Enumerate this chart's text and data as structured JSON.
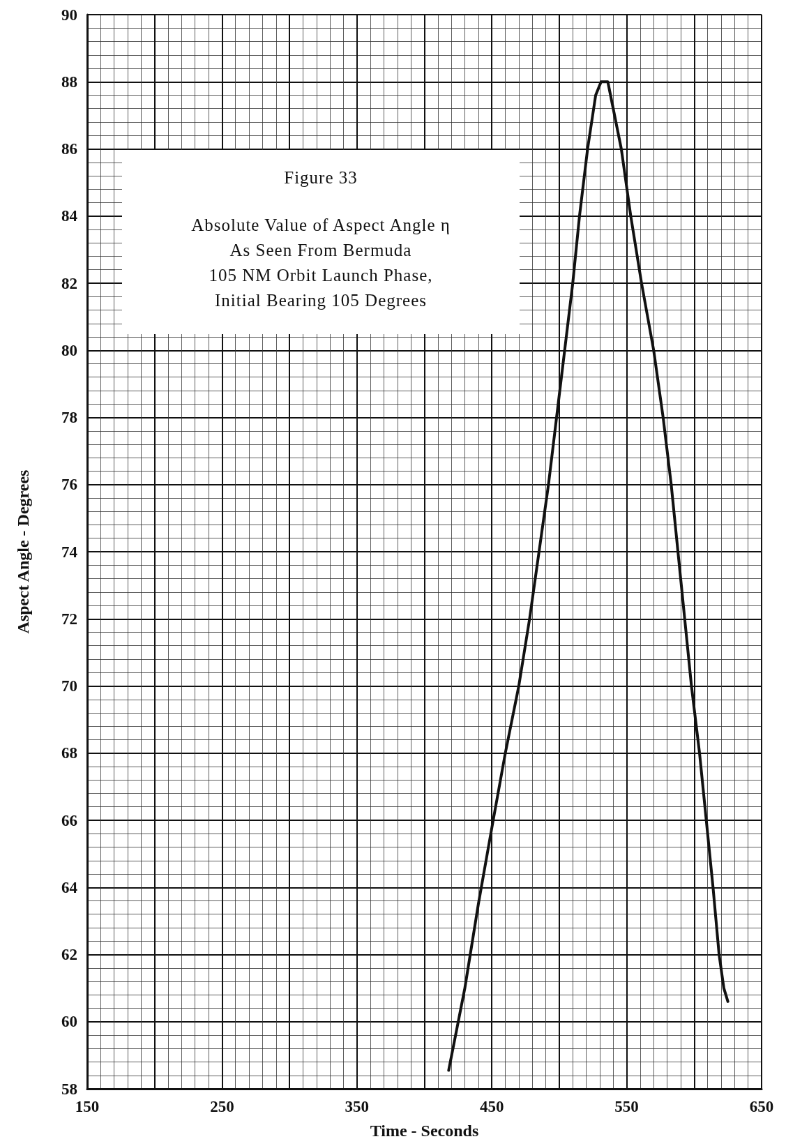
{
  "chart_data": {
    "type": "line",
    "title": "Figure 33",
    "subtitle": "Absolute Value of Aspect Angle η\nAs Seen From Bermuda\n105 NM Orbit Launch Phase,\nInitial Bearing 105 Degrees",
    "xlabel": "Time - Seconds",
    "ylabel": "Aspect Angle - Degrees",
    "x": [
      418,
      430,
      440,
      451,
      460,
      470,
      478,
      485,
      492,
      498,
      504,
      510,
      515,
      521,
      527,
      531,
      536,
      540,
      546,
      553,
      561,
      570,
      577,
      583,
      588,
      593,
      598,
      604,
      609,
      614,
      618.5,
      622,
      625
    ],
    "series": [
      {
        "color": "#111111",
        "values": [
          58.55,
          61,
          63.5,
          66,
          68,
          70,
          72,
          74,
          76,
          78,
          80,
          82,
          84,
          86,
          87.6,
          88,
          88,
          87.2,
          86,
          84,
          82,
          80,
          78,
          76,
          74,
          72,
          70,
          68,
          66,
          64,
          62,
          61,
          60.6
        ]
      }
    ],
    "xlim": [
      150,
      650
    ],
    "xticks": [
      150,
      {
        "value": 200,
        "label": null
      },
      250,
      {
        "value": 300,
        "label": null
      },
      350,
      {
        "value": 400,
        "label": null
      },
      450,
      {
        "value": 500,
        "label": null
      },
      550,
      {
        "value": 600,
        "label": null
      },
      650
    ],
    "ylim": [
      58,
      90
    ],
    "yticks": [
      58,
      60,
      62,
      64,
      66,
      68,
      70,
      72,
      74,
      76,
      78,
      80,
      82,
      84,
      86,
      88,
      90
    ],
    "grid": true,
    "marker": "none",
    "line_style": "solid"
  }
}
